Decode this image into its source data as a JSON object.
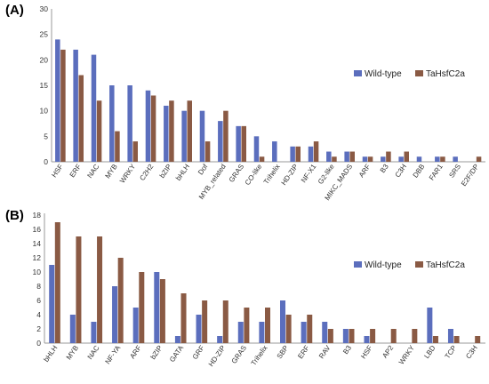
{
  "chart_data": [
    {
      "panel_label": "(A)",
      "type": "bar",
      "categories": [
        "HSF",
        "ERF",
        "NAC",
        "MYB",
        "WRKY",
        "C2H2",
        "bZIP",
        "bHLH",
        "Dof",
        "MYB_related",
        "GRAS",
        "CO-like",
        "Trihelix",
        "HD-ZIP",
        "NF-X1",
        "G2-like",
        "MIKC_MADS",
        "ARF",
        "B3",
        "C3H",
        "DBB",
        "FAR1",
        "SRS",
        "E2F/DP"
      ],
      "series": [
        {
          "name": "Wild-type",
          "color": "#5b6ebd",
          "values": [
            24,
            22,
            21,
            15,
            15,
            14,
            11,
            10,
            10,
            8,
            7,
            5,
            4,
            3,
            3,
            2,
            2,
            1,
            1,
            1,
            1,
            1,
            1,
            0
          ]
        },
        {
          "name": "TaHsfC2a",
          "color": "#8a5a44",
          "values": [
            22,
            17,
            12,
            6,
            4,
            13,
            12,
            12,
            4,
            10,
            7,
            1,
            0,
            3,
            4,
            1,
            2,
            1,
            2,
            2,
            0,
            1,
            0,
            1
          ]
        }
      ],
      "ylim": [
        0,
        30
      ],
      "yticks": [
        0,
        5,
        10,
        15,
        20,
        25,
        30
      ],
      "legend": "right",
      "grid": false
    },
    {
      "panel_label": "(B)",
      "type": "bar",
      "categories": [
        "bHLH",
        "MYB",
        "NAC",
        "NF-YA",
        "ARF",
        "bZIP",
        "GATA",
        "GRF",
        "HD-ZIP",
        "GRAS",
        "Trihelix",
        "SBP",
        "ERF",
        "RAV",
        "B3",
        "HSF",
        "AP2",
        "WRKY",
        "LBD",
        "TCP",
        "C3H"
      ],
      "series": [
        {
          "name": "Wild-type",
          "color": "#5b6ebd",
          "values": [
            11,
            4,
            3,
            8,
            5,
            10,
            1,
            4,
            1,
            3,
            3,
            6,
            3,
            3,
            2,
            1,
            0,
            0,
            5,
            2,
            0
          ]
        },
        {
          "name": "TaHsfC2a",
          "color": "#8a5a44",
          "values": [
            17,
            15,
            15,
            12,
            10,
            9,
            7,
            6,
            6,
            5,
            5,
            4,
            4,
            2,
            2,
            2,
            2,
            2,
            1,
            1,
            1
          ]
        }
      ],
      "ylim": [
        0,
        18
      ],
      "yticks": [
        0,
        2,
        4,
        6,
        8,
        10,
        12,
        14,
        16,
        18
      ],
      "legend": "right",
      "grid": false
    }
  ]
}
